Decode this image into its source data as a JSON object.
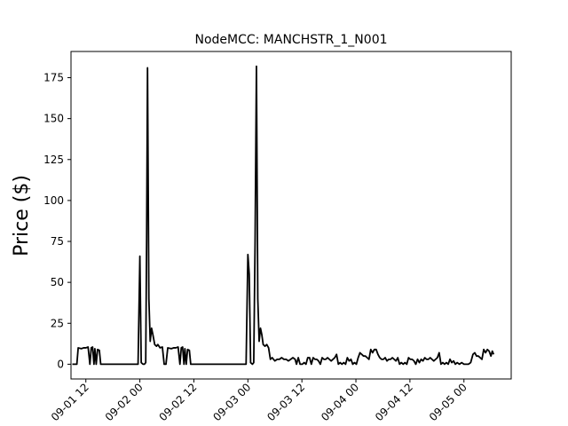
{
  "chart_data": {
    "type": "line",
    "title": "NodeMCC: MANCHSTR_1_N001",
    "xlabel": "",
    "ylabel": "Price ($)",
    "x_axis": {
      "unit": "hours since 09-01 00 (date axis)",
      "range": [
        8.7,
        106.5
      ],
      "ticks": [
        {
          "value": 12,
          "label": "09-01 12"
        },
        {
          "value": 24,
          "label": "09-02 00"
        },
        {
          "value": 36,
          "label": "09-02 12"
        },
        {
          "value": 48,
          "label": "09-03 00"
        },
        {
          "value": 60,
          "label": "09-03 12"
        },
        {
          "value": 72,
          "label": "09-04 00"
        },
        {
          "value": 84,
          "label": "09-04 12"
        },
        {
          "value": 96,
          "label": "09-05 00"
        }
      ],
      "tick_label_rotation": 45
    },
    "y_axis": {
      "range": [
        -9,
        191
      ],
      "ticks": [
        0,
        25,
        50,
        75,
        100,
        125,
        150,
        175
      ]
    },
    "grid": false,
    "legend": "none",
    "series": [
      {
        "color": "#000000",
        "points": [
          [
            9,
            0
          ],
          [
            10,
            0
          ],
          [
            10.3,
            10
          ],
          [
            11,
            9.5
          ],
          [
            11.5,
            10
          ],
          [
            12,
            10
          ],
          [
            12.5,
            10.5
          ],
          [
            12.9,
            0
          ],
          [
            13.2,
            10
          ],
          [
            13.5,
            10.5
          ],
          [
            13.8,
            0
          ],
          [
            14,
            9.5
          ],
          [
            14.3,
            0
          ],
          [
            14.6,
            9
          ],
          [
            15,
            8.5
          ],
          [
            15.3,
            0
          ],
          [
            16,
            0
          ],
          [
            17,
            0
          ],
          [
            18,
            0
          ],
          [
            19,
            0
          ],
          [
            20,
            0
          ],
          [
            21,
            0
          ],
          [
            22,
            0
          ],
          [
            23,
            0
          ],
          [
            23.6,
            0
          ],
          [
            24,
            66
          ],
          [
            24.3,
            1
          ],
          [
            24.7,
            0
          ],
          [
            25,
            0
          ],
          [
            25.3,
            1
          ],
          [
            25.5,
            75
          ],
          [
            25.7,
            181
          ],
          [
            26,
            40
          ],
          [
            26.3,
            14
          ],
          [
            26.6,
            22
          ],
          [
            26.9,
            18
          ],
          [
            27.3,
            12
          ],
          [
            27.7,
            11
          ],
          [
            28,
            12
          ],
          [
            28.5,
            10
          ],
          [
            29,
            10.5
          ],
          [
            29.4,
            0
          ],
          [
            29.8,
            0
          ],
          [
            30.2,
            10
          ],
          [
            31,
            9.5
          ],
          [
            31.5,
            10
          ],
          [
            32,
            10
          ],
          [
            32.5,
            10.5
          ],
          [
            32.9,
            0
          ],
          [
            33.2,
            10
          ],
          [
            33.5,
            10.5
          ],
          [
            33.8,
            0
          ],
          [
            34,
            9.5
          ],
          [
            34.3,
            0
          ],
          [
            34.6,
            9
          ],
          [
            35,
            8.5
          ],
          [
            35.3,
            0
          ],
          [
            36,
            0
          ],
          [
            37,
            0
          ],
          [
            38,
            0
          ],
          [
            39,
            0
          ],
          [
            40,
            0
          ],
          [
            41,
            0
          ],
          [
            42,
            0
          ],
          [
            43,
            0
          ],
          [
            44,
            0
          ],
          [
            45,
            0
          ],
          [
            46,
            0
          ],
          [
            47,
            0
          ],
          [
            47.6,
            0
          ],
          [
            48,
            67
          ],
          [
            48.3,
            55
          ],
          [
            48.6,
            1
          ],
          [
            49,
            0
          ],
          [
            49.3,
            1
          ],
          [
            49.6,
            75
          ],
          [
            49.9,
            182
          ],
          [
            50.2,
            40
          ],
          [
            50.5,
            14
          ],
          [
            50.8,
            22
          ],
          [
            51.1,
            18
          ],
          [
            51.4,
            12
          ],
          [
            51.8,
            11
          ],
          [
            52.2,
            12
          ],
          [
            52.6,
            10
          ],
          [
            53,
            3
          ],
          [
            53.4,
            4
          ],
          [
            54,
            2
          ],
          [
            54.5,
            3
          ],
          [
            55,
            3
          ],
          [
            55.5,
            4
          ],
          [
            56,
            3
          ],
          [
            56.5,
            3
          ],
          [
            57,
            2
          ],
          [
            57.5,
            3
          ],
          [
            58,
            4
          ],
          [
            58.5,
            3
          ],
          [
            58.8,
            0
          ],
          [
            59.2,
            4
          ],
          [
            59.6,
            0
          ],
          [
            60.1,
            0
          ],
          [
            60.5,
            1
          ],
          [
            60.9,
            0
          ],
          [
            61.3,
            4
          ],
          [
            61.7,
            4
          ],
          [
            62.1,
            0
          ],
          [
            62.5,
            4
          ],
          [
            62.9,
            3
          ],
          [
            63.3,
            3
          ],
          [
            63.7,
            2
          ],
          [
            64.1,
            0
          ],
          [
            64.5,
            4
          ],
          [
            64.9,
            3
          ],
          [
            65.3,
            3
          ],
          [
            65.7,
            4
          ],
          [
            66.1,
            3
          ],
          [
            66.5,
            2
          ],
          [
            66.9,
            3
          ],
          [
            67.3,
            4
          ],
          [
            67.7,
            6
          ],
          [
            68.1,
            0
          ],
          [
            68.5,
            1
          ],
          [
            68.9,
            0
          ],
          [
            69.3,
            1
          ],
          [
            69.7,
            0
          ],
          [
            70.1,
            4
          ],
          [
            70.5,
            2
          ],
          [
            70.9,
            3
          ],
          [
            71.3,
            0
          ],
          [
            71.7,
            1
          ],
          [
            72.1,
            0
          ],
          [
            72.5,
            4
          ],
          [
            72.9,
            7
          ],
          [
            73.3,
            6
          ],
          [
            73.7,
            5
          ],
          [
            74.1,
            5
          ],
          [
            74.5,
            4
          ],
          [
            74.9,
            3
          ],
          [
            75.3,
            9
          ],
          [
            75.7,
            7
          ],
          [
            76.1,
            9
          ],
          [
            76.5,
            9
          ],
          [
            76.9,
            6
          ],
          [
            77.3,
            4
          ],
          [
            77.7,
            3
          ],
          [
            78.1,
            3
          ],
          [
            78.5,
            4
          ],
          [
            78.9,
            2
          ],
          [
            79.3,
            3
          ],
          [
            79.7,
            3
          ],
          [
            80.1,
            4
          ],
          [
            80.5,
            3
          ],
          [
            80.9,
            2
          ],
          [
            81.3,
            4
          ],
          [
            81.7,
            0
          ],
          [
            82.1,
            1
          ],
          [
            82.5,
            0
          ],
          [
            82.9,
            1
          ],
          [
            83.3,
            0
          ],
          [
            83.7,
            4
          ],
          [
            84.1,
            3
          ],
          [
            84.5,
            3
          ],
          [
            84.9,
            2
          ],
          [
            85.3,
            0
          ],
          [
            85.7,
            3
          ],
          [
            86.1,
            1
          ],
          [
            86.5,
            3
          ],
          [
            86.9,
            2
          ],
          [
            87.3,
            4
          ],
          [
            87.7,
            3
          ],
          [
            88.1,
            3
          ],
          [
            88.5,
            4
          ],
          [
            88.9,
            3
          ],
          [
            89.3,
            2
          ],
          [
            89.7,
            3
          ],
          [
            90.1,
            4
          ],
          [
            90.5,
            7
          ],
          [
            90.9,
            0
          ],
          [
            91.3,
            1
          ],
          [
            91.7,
            0
          ],
          [
            92.1,
            1
          ],
          [
            92.5,
            0
          ],
          [
            92.9,
            3
          ],
          [
            93.3,
            1
          ],
          [
            93.7,
            2
          ],
          [
            94.1,
            0
          ],
          [
            94.5,
            1
          ],
          [
            95,
            0
          ],
          [
            95.5,
            1
          ],
          [
            96,
            0
          ],
          [
            96.5,
            0
          ],
          [
            97,
            0
          ],
          [
            97.5,
            1
          ],
          [
            98,
            6
          ],
          [
            98.4,
            7
          ],
          [
            98.8,
            5
          ],
          [
            99.2,
            5
          ],
          [
            99.6,
            4
          ],
          [
            100,
            3
          ],
          [
            100.4,
            9
          ],
          [
            100.8,
            7
          ],
          [
            101.2,
            9
          ],
          [
            101.6,
            8
          ],
          [
            102,
            5
          ],
          [
            102.3,
            8
          ],
          [
            102.6,
            6
          ]
        ]
      }
    ]
  }
}
